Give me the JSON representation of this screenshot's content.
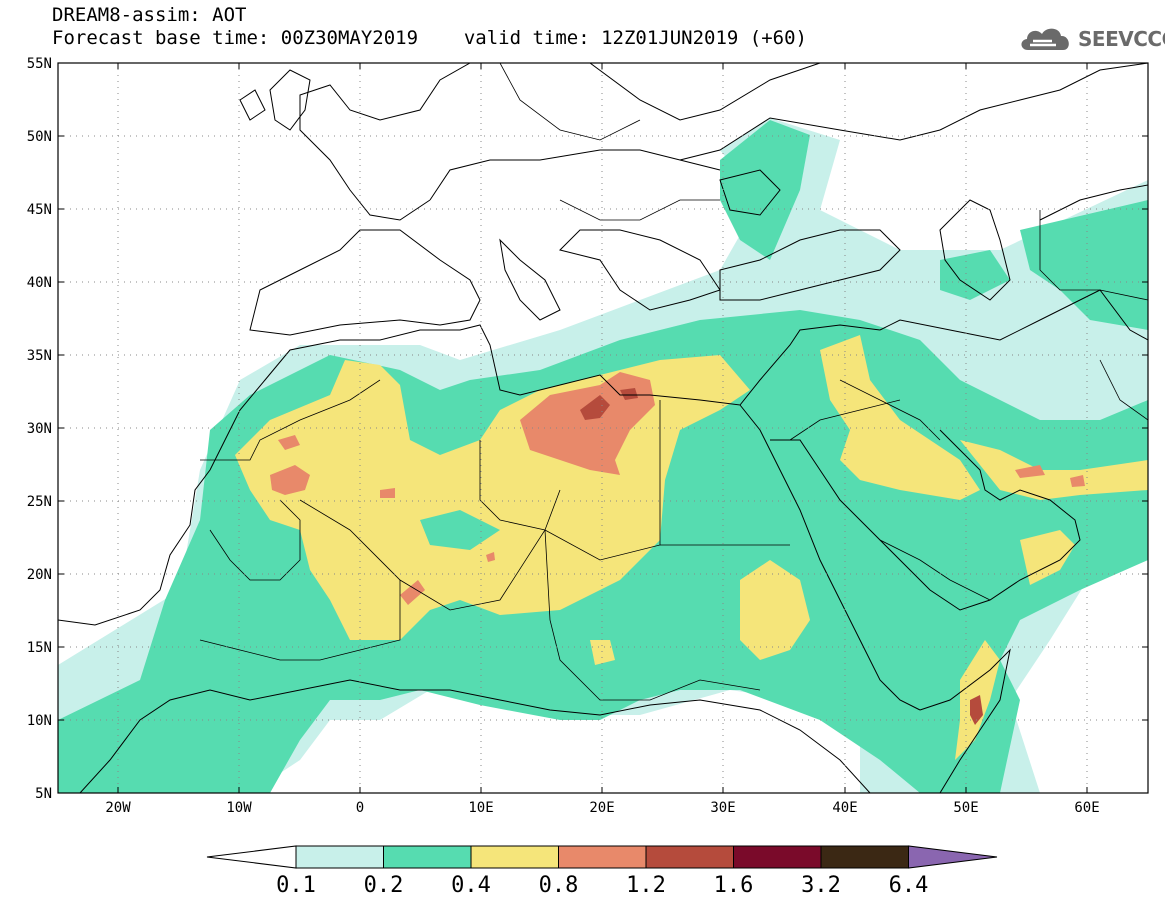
{
  "header": {
    "title": "DREAM8-assim: AOT",
    "base_time": "Forecast base time: 00Z30MAY2019",
    "valid_time": "valid time: 12Z01JUN2019 (+60)"
  },
  "logo": {
    "text": "SEEVCCC",
    "icon": "cloud-icon"
  },
  "map": {
    "lon_range": [
      -25,
      65
    ],
    "lat_range": [
      5,
      55
    ],
    "lat_ticks": [
      "5N",
      "10N",
      "15N",
      "20N",
      "25N",
      "30N",
      "35N",
      "40N",
      "45N",
      "50N",
      "55N"
    ],
    "lon_ticks": [
      "20W",
      "10W",
      "0",
      "10E",
      "20E",
      "30E",
      "40E",
      "50E",
      "60E"
    ],
    "grid": "dotted"
  },
  "colorbar": {
    "labels": [
      "0.1",
      "0.2",
      "0.4",
      "0.8",
      "1.2",
      "1.6",
      "3.2",
      "6.4"
    ],
    "colors": [
      "#c8f0ea",
      "#56dcb0",
      "#f5e57a",
      "#e8896a",
      "#b54b3c",
      "#7a0a2a",
      "#3b2814",
      "#8a66b0"
    ],
    "below_color": "#ffffff",
    "above_color": "#8a66b0"
  },
  "palette": {
    "c01": "#c8f0ea",
    "c02": "#56dcb0",
    "c04": "#f5e57a",
    "c08": "#e8896a",
    "c12": "#b54b3c"
  }
}
